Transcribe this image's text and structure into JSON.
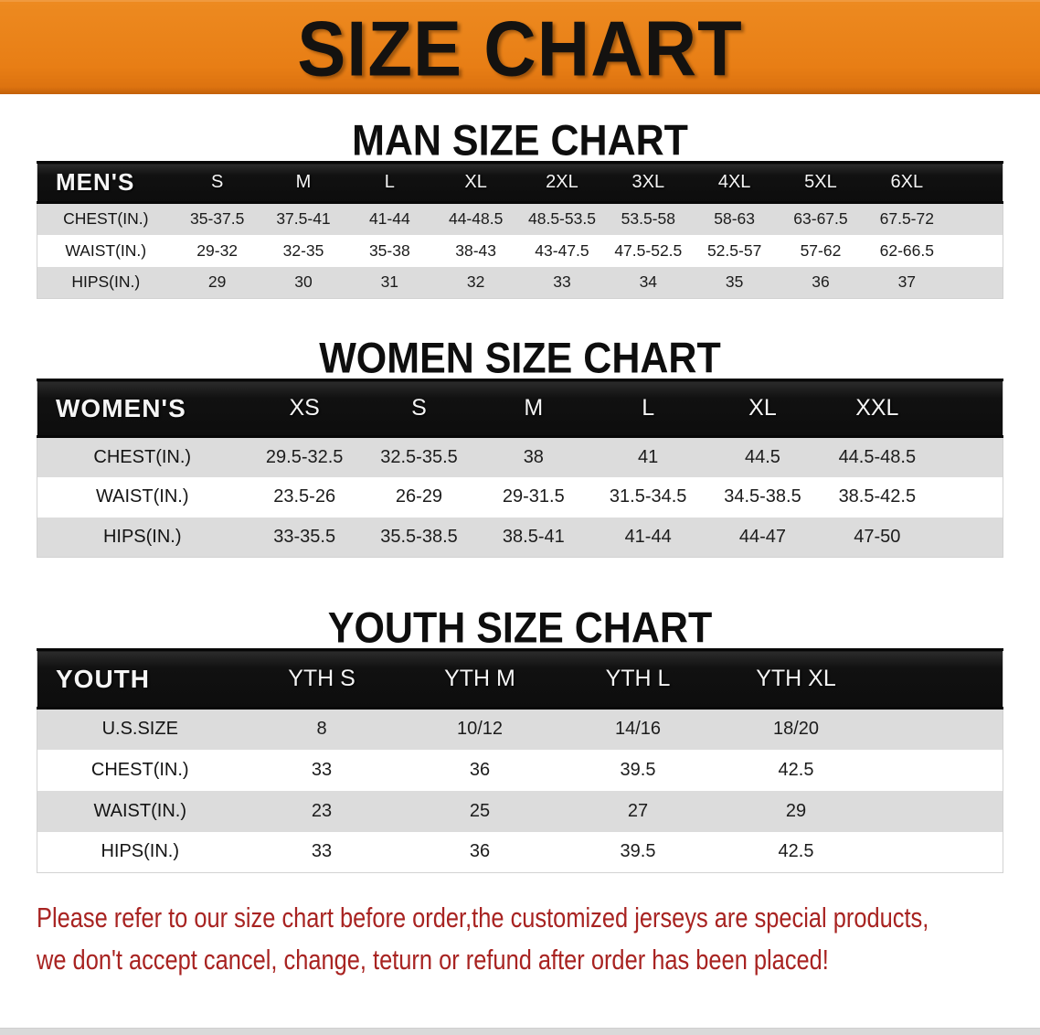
{
  "banner": {
    "title": "SIZE CHART",
    "bg_color": "#E87E15",
    "text_color": "#141210"
  },
  "tables": {
    "men": {
      "title": "MAN SIZE CHART",
      "header_label": "MEN'S",
      "sizes": [
        "S",
        "M",
        "L",
        "XL",
        "2XL",
        "3XL",
        "4XL",
        "5XL",
        "6XL"
      ],
      "rows": [
        {
          "label": "CHEST(IN.)",
          "values": [
            "35-37.5",
            "37.5-41",
            "41-44",
            "44-48.5",
            "48.5-53.5",
            "53.5-58",
            "58-63",
            "63-67.5",
            "67.5-72"
          ]
        },
        {
          "label": "WAIST(IN.)",
          "values": [
            "29-32",
            "32-35",
            "35-38",
            "38-43",
            "43-47.5",
            "47.5-52.5",
            "52.5-57",
            "57-62",
            "62-66.5"
          ]
        },
        {
          "label": "HIPS(IN.)",
          "values": [
            "29",
            "30",
            "31",
            "32",
            "33",
            "34",
            "35",
            "36",
            "37"
          ]
        }
      ]
    },
    "women": {
      "title": "WOMEN SIZE CHART",
      "header_label": "WOMEN'S",
      "sizes": [
        "XS",
        "S",
        "M",
        "L",
        "XL",
        "XXL"
      ],
      "rows": [
        {
          "label": "CHEST(IN.)",
          "values": [
            "29.5-32.5",
            "32.5-35.5",
            "38",
            "41",
            "44.5",
            "44.5-48.5"
          ]
        },
        {
          "label": "WAIST(IN.)",
          "values": [
            "23.5-26",
            "26-29",
            "29-31.5",
            "31.5-34.5",
            "34.5-38.5",
            "38.5-42.5"
          ]
        },
        {
          "label": "HIPS(IN.)",
          "values": [
            "33-35.5",
            "35.5-38.5",
            "38.5-41",
            "41-44",
            "44-47",
            "47-50"
          ]
        }
      ]
    },
    "youth": {
      "title": "YOUTH SIZE CHART",
      "header_label": "YOUTH",
      "sizes": [
        "YTH S",
        "YTH M",
        "YTH L",
        "YTH XL"
      ],
      "rows": [
        {
          "label": "U.S.SIZE",
          "values": [
            "8",
            "10/12",
            "14/16",
            "18/20"
          ]
        },
        {
          "label": "CHEST(IN.)",
          "values": [
            "33",
            "36",
            "39.5",
            "42.5"
          ]
        },
        {
          "label": "WAIST(IN.)",
          "values": [
            "23",
            "25",
            "27",
            "29"
          ]
        },
        {
          "label": "HIPS(IN.)",
          "values": [
            "33",
            "36",
            "39.5",
            "42.5"
          ]
        }
      ]
    }
  },
  "disclaimer": {
    "line1": "Please refer to our size chart before order,the customized jerseys are special products,",
    "line2": "we don't accept cancel, change, teturn or refund after order has been placed!",
    "color": "#A82321"
  }
}
